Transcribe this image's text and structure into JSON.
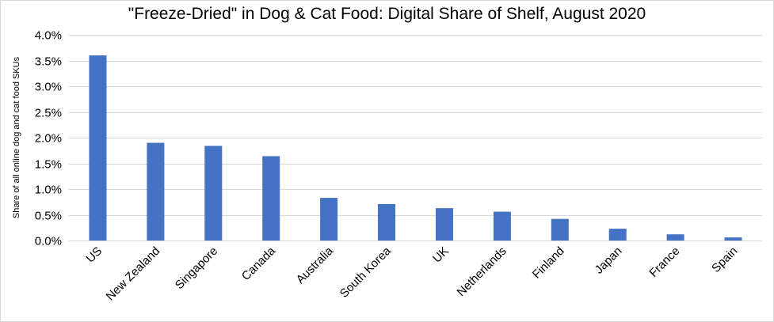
{
  "colors": {
    "bar": "#4472c4",
    "gridline": "#d9d9d9",
    "text": "#000000"
  },
  "chart_data": {
    "type": "bar",
    "title": "\"Freeze-Dried\" in Dog & Cat Food: Digital Share of Shelf, August 2020",
    "xlabel": "",
    "ylabel": "Share of all online dog and cat food SKUs",
    "ylim": [
      0,
      4.0
    ],
    "y_tick_values": [
      0,
      0.5,
      1.0,
      1.5,
      2.0,
      2.5,
      3.0,
      3.5,
      4.0
    ],
    "y_tick_labels": [
      "0.0%",
      "0.5%",
      "1.0%",
      "1.5%",
      "2.0%",
      "2.5%",
      "3.0%",
      "3.5%",
      "4.0%"
    ],
    "grid": true,
    "legend": "none",
    "categories": [
      "US",
      "New Zealand",
      "Singapore",
      "Canada",
      "Australia",
      "South Korea",
      "UK",
      "Netherlands",
      "Finland",
      "Japan",
      "France",
      "Spain"
    ],
    "values": [
      3.6,
      1.9,
      1.84,
      1.64,
      0.83,
      0.71,
      0.63,
      0.56,
      0.42,
      0.23,
      0.12,
      0.06
    ]
  }
}
